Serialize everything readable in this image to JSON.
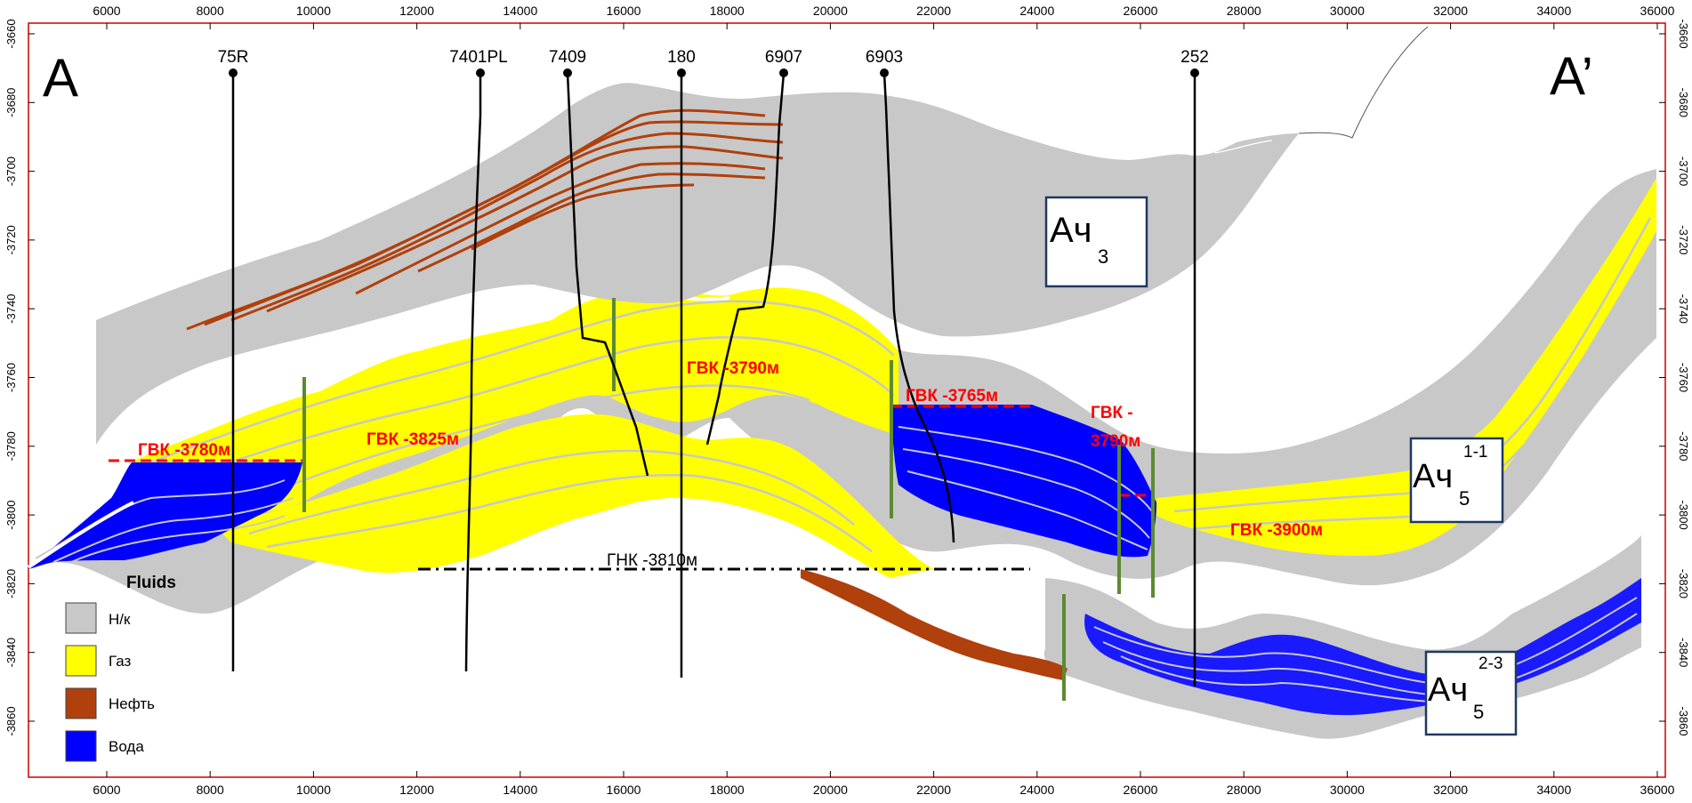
{
  "axes": {
    "x_ticks": [
      "6000",
      "8000",
      "10000",
      "12000",
      "14000",
      "16000",
      "18000",
      "20000",
      "22000",
      "24000",
      "26000",
      "28000",
      "30000",
      "32000",
      "34000",
      "36000"
    ],
    "y_ticks": [
      "-3660",
      "-3680",
      "-3700",
      "-3720",
      "-3740",
      "-3760",
      "-3780",
      "-3800",
      "-3820",
      "-3840",
      "-3860"
    ]
  },
  "section": {
    "start_label": "A",
    "end_label": "A’"
  },
  "wells": [
    "75R",
    "7401PL",
    "7409",
    "180",
    "6907",
    "6903",
    "252"
  ],
  "contacts": {
    "gvk_3780": "ГВК -3780м",
    "gvk_3825": "ГВК -3825м",
    "gvk_3790_center": "ГВК -3790м",
    "gvk_3765": "ГВК -3765м",
    "gvk_3790_right_1": "ГВК -",
    "gvk_3790_right_2": "3790м",
    "gvk_3900": "ГВК -3900м",
    "gnk_3810": "ГНК -3810м"
  },
  "formations": {
    "ach3": {
      "main": "Ач",
      "sub": "3",
      "sup": ""
    },
    "ach5_11": {
      "main": "Ач",
      "sub": "5",
      "sup": "1-1"
    },
    "ach5_23": {
      "main": "Ач",
      "sub": "5",
      "sup": "2-3"
    }
  },
  "legend": {
    "title": "Fluids",
    "items": [
      {
        "label": "Н/к",
        "color": "#c8c8c8"
      },
      {
        "label": "Газ",
        "color": "#ffff00"
      },
      {
        "label": "Нефть",
        "color": "#b0400c"
      },
      {
        "label": "Вода",
        "color": "#0000ff"
      }
    ]
  },
  "colors": {
    "axis": "#cc0000",
    "fault": "#5c8a32",
    "contact": "#ff0000",
    "gnk": "#000000"
  }
}
